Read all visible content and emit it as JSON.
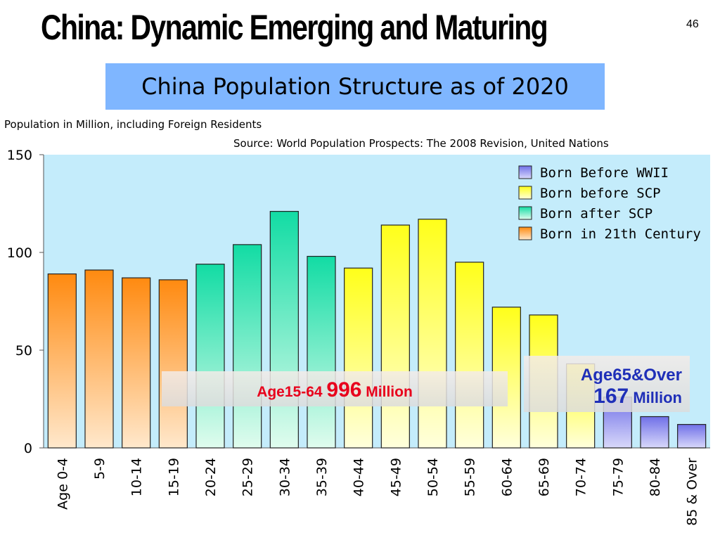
{
  "slide": {
    "title": "China: Dynamic Emerging and Maturing",
    "page_number": "46"
  },
  "chart_data": {
    "type": "bar",
    "title": "China Population Structure as of 2020",
    "subtitle": "Population in Million, including Foreign Residents",
    "source": "Source: World Population Prospects: The 2008 Revision, United Nations",
    "categories": [
      "Age 0-4",
      "5-9",
      "10-14",
      "15-19",
      "20-24",
      "25-29",
      "30-34",
      "35-39",
      "40-44",
      "45-49",
      "50-54",
      "55-59",
      "60-64",
      "65-69",
      "70-74",
      "75-79",
      "80-84",
      "85 & Over"
    ],
    "values": [
      89,
      91,
      87,
      86,
      94,
      104,
      121,
      98,
      92,
      114,
      117,
      95,
      72,
      68,
      43,
      26,
      16,
      12
    ],
    "groups": [
      "21th",
      "21th",
      "21th",
      "21th",
      "afterSCP",
      "afterSCP",
      "afterSCP",
      "afterSCP",
      "beforeSCP",
      "beforeSCP",
      "beforeSCP",
      "beforeSCP",
      "beforeSCP",
      "beforeSCP",
      "beforeSCP",
      "WWII",
      "WWII",
      "WWII"
    ],
    "ylim": [
      0,
      150
    ],
    "yticks": [
      0,
      50,
      100,
      150
    ],
    "grid": false,
    "legend_position": "top-right",
    "legend": [
      {
        "key": "WWII",
        "label": "Born Before WWII",
        "color": "#8c8cf0"
      },
      {
        "key": "beforeSCP",
        "label": "Born before SCP",
        "color": "#ffff33"
      },
      {
        "key": "afterSCP",
        "label": "Born after SCP",
        "color": "#2ee0a8"
      },
      {
        "key": "21th",
        "label": "Born in 21th Century",
        "color": "#ff8c1a"
      }
    ],
    "annotations": {
      "working_age": {
        "prefix": "Age15-64 ",
        "value": "996",
        "suffix": " Million"
      },
      "elderly": {
        "line1": "Age65&Over",
        "value": "167",
        "suffix": " Million"
      }
    },
    "colors": {
      "plot_background": "#c4ecfb",
      "annotation_red": "#e8001c",
      "annotation_blue": "#1f2fb8"
    }
  }
}
